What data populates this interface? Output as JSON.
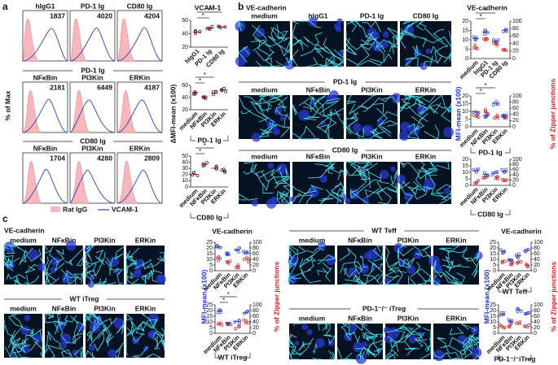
{
  "a": {
    "label": "a",
    "y_label": "% of Max",
    "hist_rows": [
      {
        "panels": [
          {
            "name": "hIgG1",
            "value": "1837"
          },
          {
            "name": "PD-1 Ig",
            "value": "4020"
          },
          {
            "name": "CD80 Ig",
            "value": "4204"
          }
        ]
      },
      {
        "title": "PD-1 Ig",
        "panels": [
          {
            "name": "NFκBin",
            "value": "2181"
          },
          {
            "name": "PI3Kin",
            "value": "6449"
          },
          {
            "name": "ERKin",
            "value": "4187"
          }
        ]
      },
      {
        "title": "CD80 Ig",
        "panels": [
          {
            "name": "NFκBin",
            "value": "1704"
          },
          {
            "name": "PI3Kin",
            "value": "4280"
          },
          {
            "name": "ERKin",
            "value": "2809"
          }
        ]
      }
    ],
    "legend": [
      "Rat IgG",
      "VCAM-1"
    ],
    "plot": {
      "title": "VCAM-1",
      "y_label": "ΔMFI-mean (x100)",
      "subplots": [
        {
          "yticks": [
            20,
            40,
            60
          ],
          "categories": [
            "hIgG1",
            "PD-1 Ig",
            "CD80 Ig"
          ],
          "stars": [
            "*",
            "*"
          ]
        },
        {
          "yticks": [
            20,
            40,
            60
          ],
          "categories": [
            "medium",
            "NFκBin",
            "PI3Kin",
            "ERKin"
          ],
          "group": "PD-1 Ig",
          "stars": [
            "*",
            "*"
          ]
        },
        {
          "yticks": [
            0,
            10,
            20,
            30,
            40,
            50
          ],
          "categories": [
            "medium",
            "NFκBin",
            "PI3Kin",
            "ERKin"
          ],
          "group": "CD80 Ig",
          "stars": [
            "*",
            "*"
          ]
        }
      ]
    }
  },
  "b": {
    "label": "b",
    "title": "VE-cadherin",
    "image_rows": [
      {
        "columns": [
          "medium",
          "hIgG1",
          "PD-1 Ig",
          "CD80 Ig"
        ]
      },
      {
        "title": "PD-1 Ig",
        "columns": [
          "medium",
          "NFκBin",
          "PI3Kin",
          "ERKin"
        ]
      },
      {
        "title": "CD80 Ig",
        "columns": [
          "medium",
          "NFκBin",
          "PI3Kin",
          "ERKin"
        ]
      }
    ],
    "plot": {
      "title": "VE-cadherin",
      "y_label": "MFI-mean (x100)",
      "y2_label": "% of Zipper junctions",
      "subplots": [
        {
          "yticks": [
            0,
            5,
            10,
            15,
            20
          ],
          "y2ticks": [
            0,
            20,
            40,
            60,
            80,
            100
          ],
          "categories": [
            "medium",
            "hIgG1",
            "PD-1 Ig",
            "CD80 Ig"
          ],
          "stars": [
            "*",
            "*"
          ]
        },
        {
          "yticks": [
            0,
            5,
            10,
            15,
            20
          ],
          "y2ticks": [
            0,
            20,
            40,
            60,
            80,
            100
          ],
          "categories": [
            "medium",
            "NFκBin",
            "PI3Kin",
            "ERKin"
          ],
          "group": "PD-1 Ig",
          "stars": [
            "*",
            "*"
          ]
        },
        {
          "yticks": [
            0,
            5,
            10,
            15,
            20
          ],
          "y2ticks": [
            0,
            20,
            40,
            60,
            80,
            100
          ],
          "categories": [
            "medium",
            "NFκBin",
            "PI3Kin",
            "ERKin"
          ],
          "group": "CD80 Ig"
        }
      ]
    }
  },
  "c": {
    "label": "c",
    "left": {
      "image_rows": [
        {
          "title": "VE-cadherin",
          "columns": [
            "medium",
            "NFκBin",
            "PI3Kin",
            "ERKin"
          ]
        },
        {
          "title": "WT iTreg",
          "columns": [
            "medium",
            "NFκBin",
            "PI3Kin",
            "ERKin"
          ]
        }
      ],
      "plot": {
        "title": "VE-cadherin",
        "y_label": "MFI-mean (x100)",
        "y2_label": "% of Zipper junctions",
        "subplots": [
          {
            "yticks": [
              0,
              5,
              10,
              15,
              20,
              25
            ],
            "y2ticks": [
              0,
              20,
              40,
              60,
              80,
              100
            ],
            "categories": [
              "medium",
              "NFκBin",
              "PI3Kin",
              "ERKin"
            ]
          },
          {
            "yticks": [
              0,
              5,
              10,
              15,
              20,
              25
            ],
            "y2ticks": [
              0,
              20,
              40,
              60,
              80,
              100
            ],
            "categories": [
              "medium",
              "NFκBin",
              "PI3Kin",
              "ERKin"
            ],
            "group": "WT iTreg",
            "stars": [
              "*",
              "*"
            ]
          }
        ]
      }
    },
    "right": {
      "image_rows": [
        {
          "title": "WT Teff",
          "columns": [
            "medium",
            "NFκBin",
            "PI3Kin",
            "ERKin"
          ]
        },
        {
          "title": "PD-1⁻/⁻ iTreg",
          "columns": [
            "medium",
            "NFκBin",
            "PI3Kin",
            "ERKin"
          ]
        }
      ],
      "plot": {
        "title": "VE-cadherin",
        "y_label": "MFI-mean (x100)",
        "y2_label": "% of Zipper junctions",
        "subplots": [
          {
            "yticks": [
              0,
              5,
              10,
              15,
              20,
              25
            ],
            "y2ticks": [
              0,
              20,
              40,
              60,
              80,
              100
            ],
            "categories": [
              "medium",
              "NFκBin",
              "PI3Kin",
              "ERKin"
            ],
            "group": "WT Teff"
          },
          {
            "yticks": [
              0,
              5,
              10,
              15,
              20,
              25
            ],
            "y2ticks": [
              0,
              20,
              40,
              60,
              80,
              100
            ],
            "categories": [
              "medium",
              "NFκBin",
              "PI3Kin",
              "ERKin"
            ],
            "group": "PD-1⁻/⁻iTreg"
          }
        ]
      }
    }
  }
}
